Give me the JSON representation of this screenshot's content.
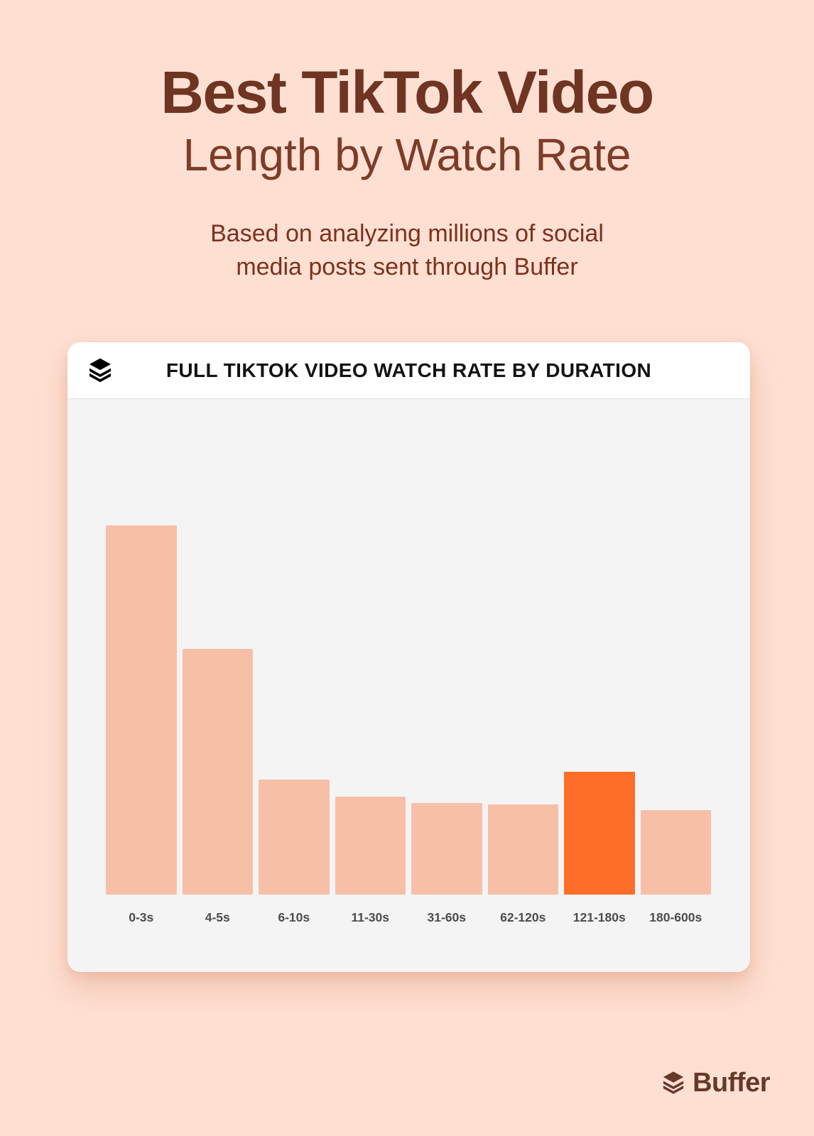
{
  "theme": {
    "page_background": "#fee0d3",
    "title_bold_color": "#6f3422",
    "title_light_color": "#7e3c28",
    "subtitle_color": "#7d311d",
    "card_header_background": "#ffffff",
    "card_body_background": "#f4f4f5",
    "card_title_color": "#131313",
    "header_icon": "buffer-layers-icon",
    "footer_icon": "buffer-layers-icon"
  },
  "heading": {
    "title_line1": "Best TikTok Video",
    "title_line2": "Length by Watch Rate",
    "subtitle_line1": "Based on analyzing millions of social",
    "subtitle_line2": "media posts sent through Buffer"
  },
  "chart_data": {
    "type": "bar",
    "title": "FULL TIKTOK VIDEO WATCH RATE BY DURATION",
    "categories": [
      "0-3s",
      "4-5s",
      "6-10s",
      "11-30s",
      "31-60s",
      "62-120s",
      "121-180s",
      "180-600s"
    ],
    "values": [
      100,
      66.5,
      31.2,
      26.5,
      24.8,
      24.4,
      33.3,
      22.9
    ],
    "values_unit": "relative bar height, % of tallest bar (chart displays no numeric axis)",
    "highlight_index": 6,
    "highlight_category": "121-180s",
    "bar_color": "#f7c0a6",
    "highlight_color": "#fe6e28",
    "label_color": "#4c4c4c",
    "xlabel": "",
    "ylabel": "",
    "grid": false,
    "legend": false
  },
  "footer": {
    "brand": "Buffer",
    "brand_color": "#663828"
  }
}
